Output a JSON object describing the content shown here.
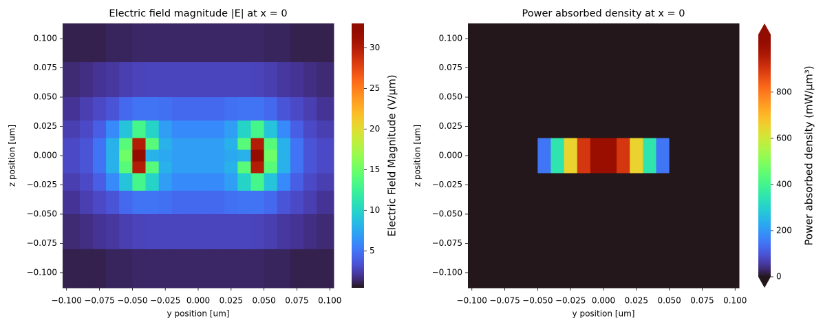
{
  "chart_data": [
    {
      "type": "heatmap",
      "title": "Electric field magnitude |E| at x = 0",
      "xlabel": "y position [um]",
      "ylabel": "z position [um]",
      "colorbar_label": "Electric Field Magnitude (V/μm)",
      "colormap": "turbo",
      "clim": [
        0.45,
        33
      ],
      "cticks": [
        5,
        10,
        15,
        20,
        25,
        30
      ],
      "extend": "neither",
      "xlim": [
        -0.103,
        0.103
      ],
      "ylim": [
        -0.113,
        0.113
      ],
      "xticks": [
        {
          "value": -0.1,
          "label": "−0.100"
        },
        {
          "value": -0.075,
          "label": "−0.075"
        },
        {
          "value": -0.05,
          "label": "−0.050"
        },
        {
          "value": -0.025,
          "label": "−0.025"
        },
        {
          "value": 0,
          "label": "0.000"
        },
        0.025,
        {
          "value": 0.05,
          "label": "0.050"
        },
        0.075,
        {
          "value": 0.1,
          "label": "0.100"
        }
      ],
      "yticks": [
        {
          "value": -0.1,
          "label": "−0.100"
        },
        {
          "value": -0.075,
          "label": "−0.075"
        },
        {
          "value": -0.05,
          "label": "−0.050"
        },
        {
          "value": -0.025,
          "label": "−0.025"
        },
        {
          "value": 0,
          "label": "0.000"
        },
        0.025,
        {
          "value": 0.05,
          "label": "0.050"
        },
        0.075,
        {
          "value": 0.1,
          "label": "0.100"
        }
      ],
      "x_bins": [
        -0.103,
        -0.09,
        -0.08,
        -0.07,
        -0.06,
        -0.05,
        -0.04,
        -0.03,
        -0.02,
        -0.01,
        0,
        0.01,
        0.02,
        0.03,
        0.04,
        0.05,
        0.06,
        0.07,
        0.08,
        0.09,
        0.103
      ],
      "y_bins": [
        0.113,
        0.08,
        0.05,
        0.03,
        0.015,
        0.005,
        -0.005,
        -0.015,
        -0.03,
        -0.05,
        -0.08,
        -0.113
      ],
      "z": [
        [
          1,
          1,
          1,
          1.2,
          1.2,
          1.3,
          1.3,
          1.3,
          1.3,
          1.3,
          1.3,
          1.3,
          1.3,
          1.3,
          1.3,
          1.2,
          1.2,
          1,
          1,
          1
        ],
        [
          1.5,
          1.7,
          2,
          2.2,
          2.5,
          2.7,
          2.8,
          2.8,
          2.8,
          2.8,
          2.8,
          2.8,
          2.8,
          2.8,
          2.7,
          2.5,
          2.2,
          2,
          1.7,
          1.5
        ],
        [
          2,
          2.5,
          3,
          3.5,
          4.5,
          5,
          5,
          4.8,
          4.5,
          4.5,
          4.5,
          4.5,
          4.8,
          5,
          5,
          4.5,
          3.5,
          3,
          2.5,
          2
        ],
        [
          2.5,
          3,
          4,
          6,
          9,
          13,
          10,
          7,
          6,
          6,
          6,
          6,
          7,
          10,
          13,
          9,
          6,
          4,
          3,
          2.5
        ],
        [
          3,
          3.5,
          5,
          8,
          14,
          30,
          14,
          8,
          7,
          7,
          7,
          7,
          8,
          14,
          30,
          14,
          8,
          5,
          3.5,
          3
        ],
        [
          3,
          3.5,
          5,
          8,
          15,
          32,
          8,
          7.5,
          7,
          7,
          7,
          7,
          7.5,
          8,
          32,
          15,
          8,
          5,
          3.5,
          3
        ],
        [
          3,
          3.5,
          5,
          8,
          14,
          30,
          14,
          8,
          7,
          7,
          7,
          7,
          8,
          14,
          30,
          14,
          8,
          5,
          3.5,
          3
        ],
        [
          2.5,
          3,
          4,
          6,
          9,
          13,
          10,
          7,
          6,
          6,
          6,
          6,
          7,
          10,
          13,
          9,
          6,
          4,
          3,
          2.5
        ],
        [
          2,
          2.5,
          3,
          3.5,
          4.5,
          5,
          5,
          4.8,
          4.5,
          4.5,
          4.5,
          4.5,
          4.8,
          5,
          5,
          4.5,
          3.5,
          3,
          2.5,
          2
        ],
        [
          1.5,
          1.7,
          2,
          2.2,
          2.5,
          2.7,
          2.8,
          2.8,
          2.8,
          2.8,
          2.8,
          2.8,
          2.8,
          2.8,
          2.7,
          2.5,
          2.2,
          2,
          1.7,
          1.5
        ],
        [
          1,
          1,
          1,
          1.2,
          1.2,
          1.3,
          1.3,
          1.3,
          1.3,
          1.3,
          1.3,
          1.3,
          1.3,
          1.3,
          1.3,
          1.2,
          1.2,
          1,
          1,
          1
        ]
      ]
    },
    {
      "type": "heatmap",
      "title": "Power absorbed density at x = 0",
      "xlabel": "y position [um]",
      "ylabel": "z position [um]",
      "colorbar_label": "Power absorbed density (mW/μm³)",
      "colormap": "turbo",
      "clim": [
        0,
        1050
      ],
      "cticks": [
        0,
        200,
        400,
        600,
        800
      ],
      "extend": "both",
      "xlim": [
        -0.103,
        0.103
      ],
      "ylim": [
        -0.113,
        0.113
      ],
      "xticks": [
        {
          "value": -0.1,
          "label": "−0.100"
        },
        {
          "value": -0.075,
          "label": "−0.075"
        },
        {
          "value": -0.05,
          "label": "−0.050"
        },
        {
          "value": -0.025,
          "label": "−0.025"
        },
        {
          "value": 0,
          "label": "0.000"
        },
        0.025,
        {
          "value": 0.05,
          "label": "0.050"
        },
        0.075,
        {
          "value": 0.1,
          "label": "0.100"
        }
      ],
      "yticks": [
        {
          "value": -0.1,
          "label": "−0.100"
        },
        {
          "value": -0.075,
          "label": "−0.075"
        },
        {
          "value": -0.05,
          "label": "−0.050"
        },
        {
          "value": -0.025,
          "label": "−0.025"
        },
        {
          "value": 0,
          "label": "0.000"
        },
        0.025,
        {
          "value": 0.05,
          "label": "0.050"
        },
        0.075,
        {
          "value": 0.1,
          "label": "0.100"
        }
      ],
      "x_bins": [
        -0.103,
        -0.09,
        -0.08,
        -0.07,
        -0.06,
        -0.05,
        -0.04,
        -0.03,
        -0.02,
        -0.01,
        0,
        0.01,
        0.02,
        0.03,
        0.04,
        0.05,
        0.06,
        0.07,
        0.08,
        0.09,
        0.103
      ],
      "y_bins": [
        0.113,
        0.08,
        0.05,
        0.03,
        0.015,
        0.005,
        -0.005,
        -0.015,
        -0.03,
        -0.05,
        -0.08,
        -0.113
      ],
      "z": [
        [
          0,
          0,
          0,
          0,
          0,
          0,
          0,
          0,
          0,
          0,
          0,
          0,
          0,
          0,
          0,
          0,
          0,
          0,
          0,
          0
        ],
        [
          0,
          0,
          0,
          0,
          0,
          0,
          0,
          0,
          0,
          0,
          0,
          0,
          0,
          0,
          0,
          0,
          0,
          0,
          0,
          0
        ],
        [
          0,
          0,
          0,
          0,
          0,
          0,
          0,
          0,
          0,
          0,
          0,
          0,
          0,
          0,
          0,
          0,
          0,
          0,
          0,
          0
        ],
        [
          0,
          0,
          0,
          0,
          0,
          0,
          0,
          0,
          0,
          0,
          0,
          0,
          0,
          0,
          0,
          0,
          0,
          0,
          0,
          0
        ],
        [
          0,
          0,
          0,
          0,
          0,
          150,
          350,
          650,
          900,
          1000,
          1000,
          900,
          650,
          350,
          150,
          0,
          0,
          0,
          0,
          0
        ],
        [
          0,
          0,
          0,
          0,
          0,
          150,
          350,
          650,
          900,
          1000,
          1000,
          900,
          650,
          350,
          150,
          0,
          0,
          0,
          0,
          0
        ],
        [
          0,
          0,
          0,
          0,
          0,
          150,
          350,
          650,
          900,
          1000,
          1000,
          900,
          650,
          350,
          150,
          0,
          0,
          0,
          0,
          0
        ],
        [
          0,
          0,
          0,
          0,
          0,
          0,
          0,
          0,
          0,
          0,
          0,
          0,
          0,
          0,
          0,
          0,
          0,
          0,
          0,
          0
        ],
        [
          0,
          0,
          0,
          0,
          0,
          0,
          0,
          0,
          0,
          0,
          0,
          0,
          0,
          0,
          0,
          0,
          0,
          0,
          0,
          0
        ],
        [
          0,
          0,
          0,
          0,
          0,
          0,
          0,
          0,
          0,
          0,
          0,
          0,
          0,
          0,
          0,
          0,
          0,
          0,
          0,
          0
        ],
        [
          0,
          0,
          0,
          0,
          0,
          0,
          0,
          0,
          0,
          0,
          0,
          0,
          0,
          0,
          0,
          0,
          0,
          0,
          0,
          0
        ]
      ]
    }
  ]
}
